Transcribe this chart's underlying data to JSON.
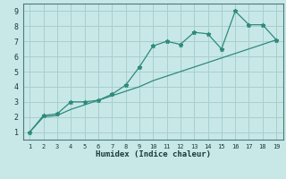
{
  "xlabel": "Humidex (Indice chaleur)",
  "x": [
    1,
    2,
    3,
    4,
    5,
    6,
    7,
    8,
    9,
    10,
    11,
    12,
    13,
    14,
    15,
    16,
    17,
    18,
    19
  ],
  "y_curve": [
    1.0,
    2.1,
    2.2,
    3.0,
    3.0,
    3.1,
    3.5,
    4.1,
    5.3,
    6.7,
    7.0,
    6.8,
    7.6,
    7.5,
    6.5,
    9.0,
    8.1,
    8.1,
    7.1
  ],
  "y_linear": [
    1.0,
    2.0,
    2.1,
    2.5,
    2.8,
    3.1,
    3.4,
    3.7,
    4.0,
    4.4,
    4.7,
    5.0,
    5.3,
    5.6,
    5.9,
    6.2,
    6.5,
    6.8,
    7.1
  ],
  "line_color": "#2e8b7a",
  "bg_color": "#c8e8e8",
  "grid_color": "#a8cece",
  "ylim": [
    0.5,
    9.5
  ],
  "xlim": [
    0.5,
    19.5
  ],
  "yticks": [
    1,
    2,
    3,
    4,
    5,
    6,
    7,
    8,
    9
  ],
  "xticks": [
    1,
    2,
    3,
    4,
    5,
    6,
    7,
    8,
    9,
    10,
    11,
    12,
    13,
    14,
    15,
    16,
    17,
    18,
    19
  ],
  "tick_color": "#1a3a3a",
  "xlabel_fontsize": 6.5,
  "xlabel_fontweight": "bold",
  "ytick_fontsize": 6.0,
  "xtick_fontsize": 5.0,
  "marker": "*",
  "markersize": 3.5,
  "linewidth": 0.9
}
